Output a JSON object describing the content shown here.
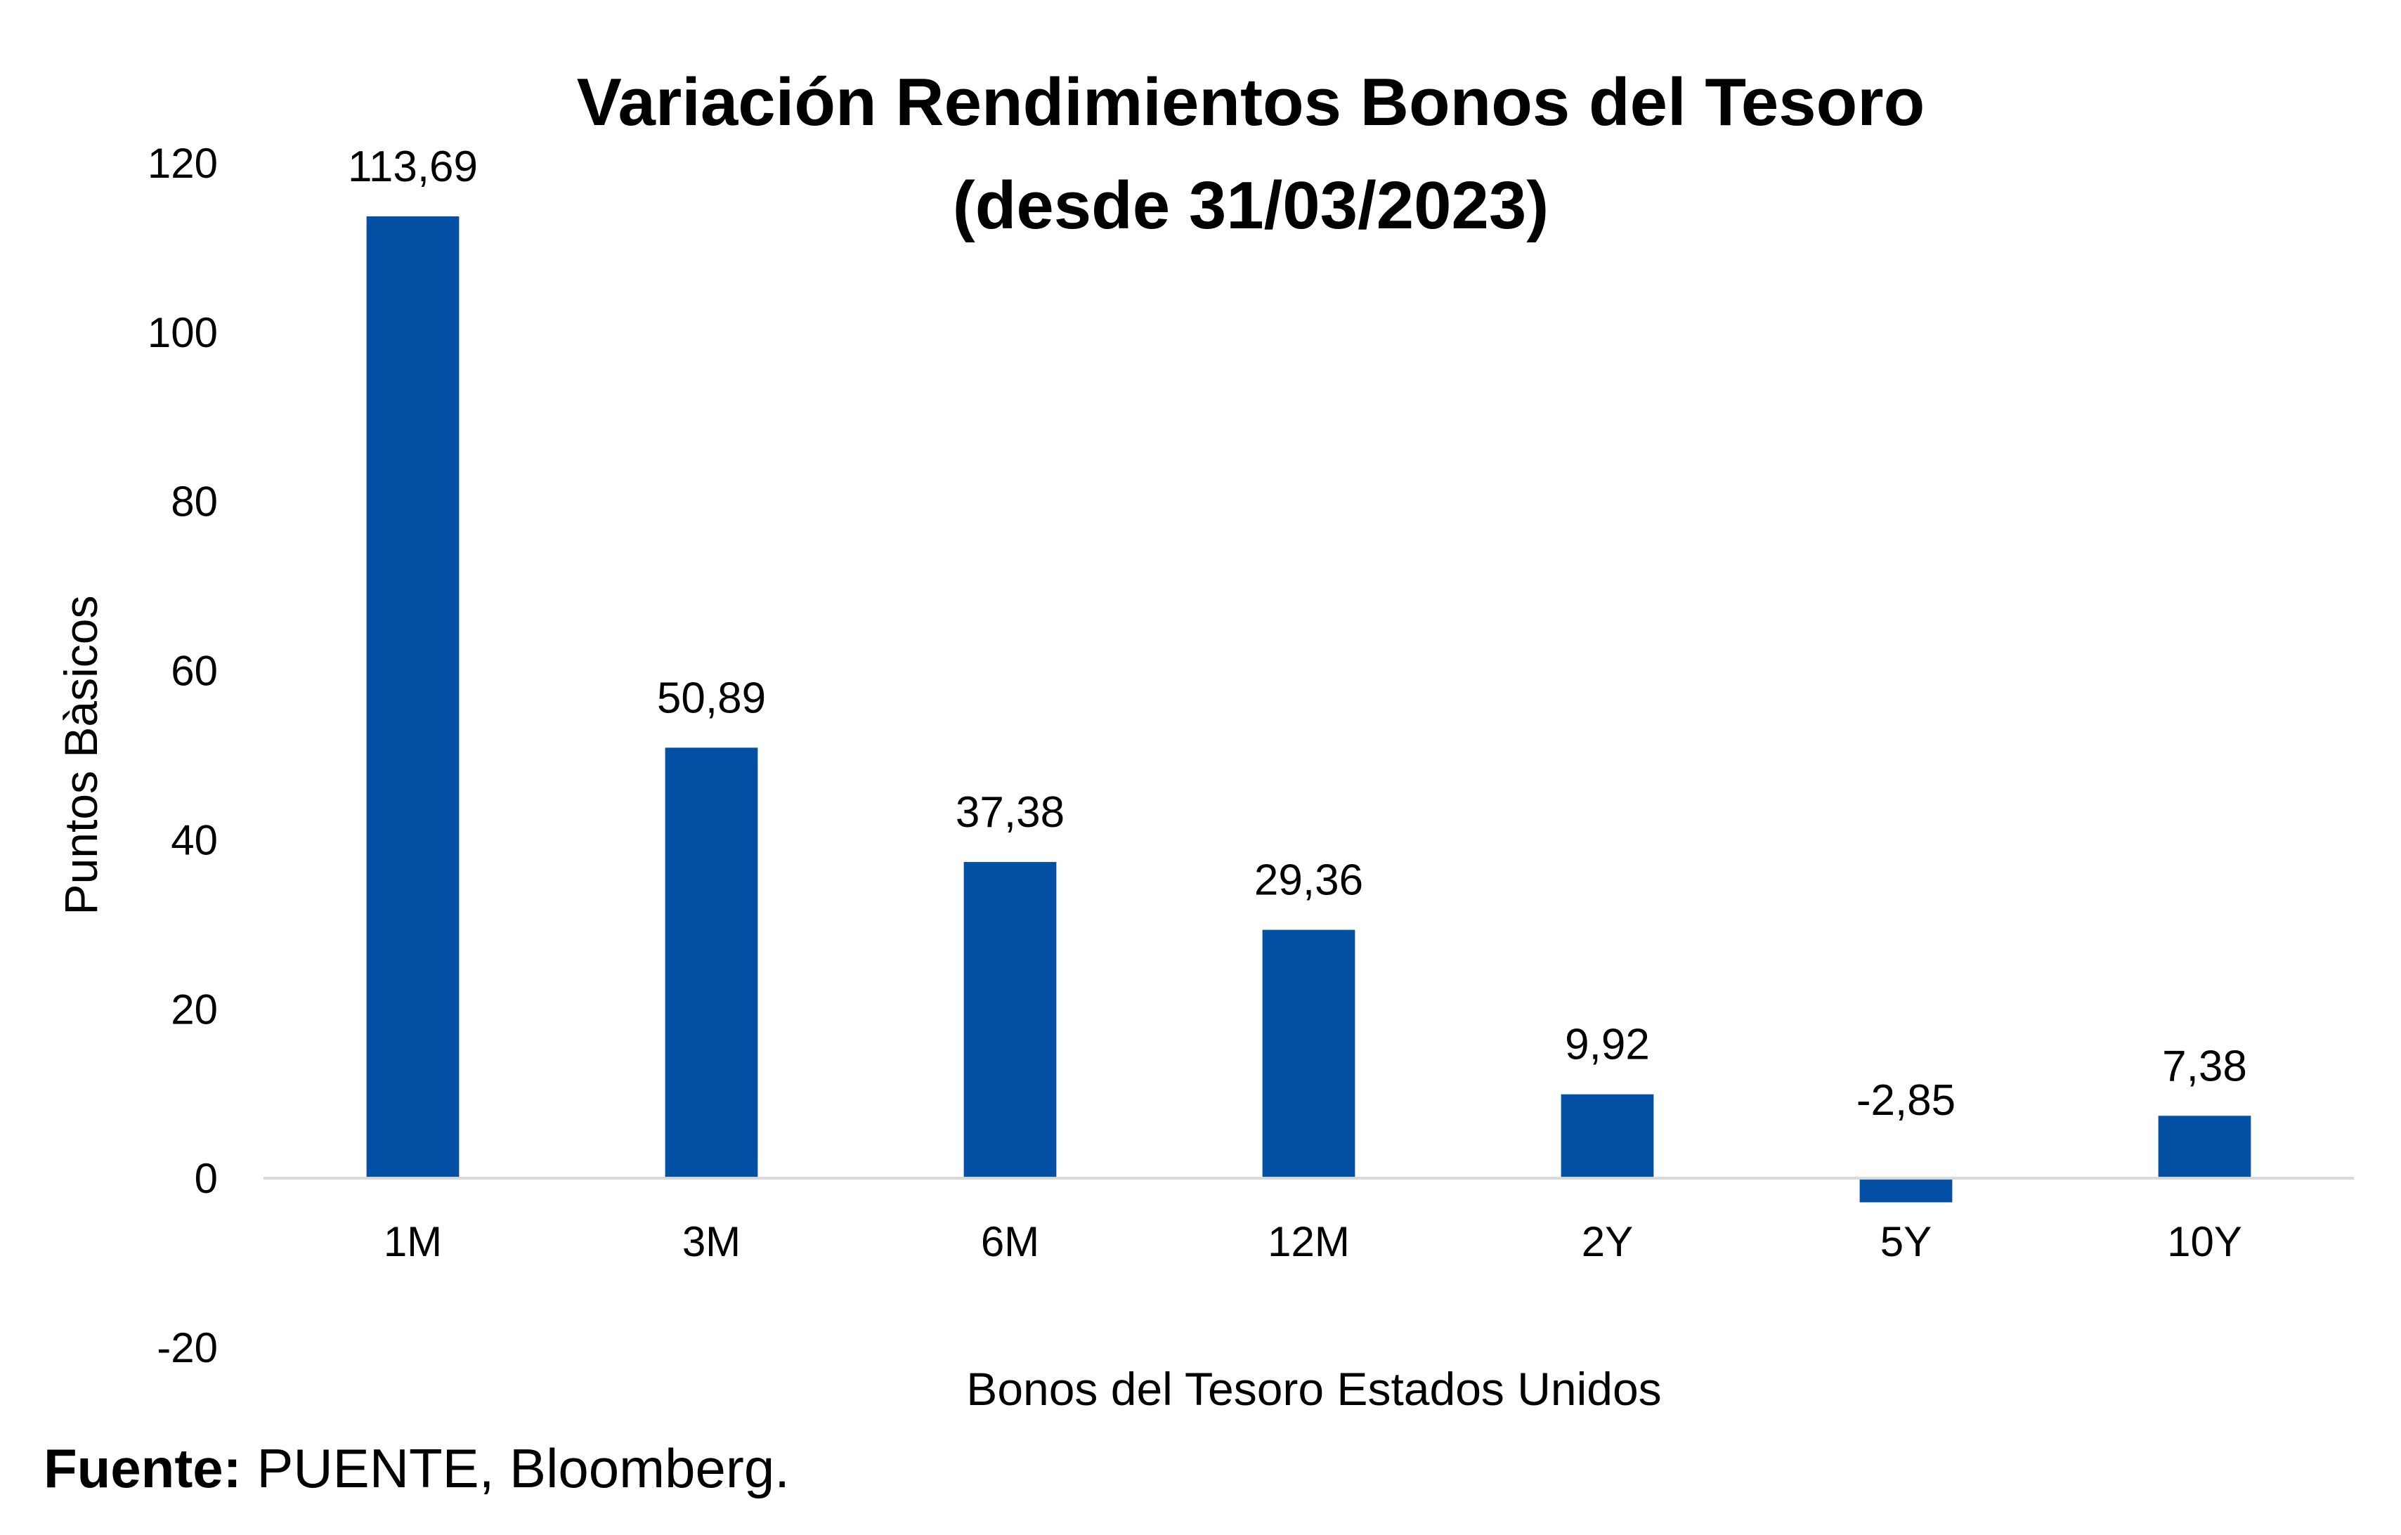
{
  "chart_data": {
    "type": "bar",
    "title": "Variación Rendimientos Bonos del Tesoro",
    "subtitle": "(desde 31/03/2023)",
    "xlabel": "Bonos del Tesoro Estados Unidos",
    "ylabel": "Puntos Bàsicos",
    "categories": [
      "1M",
      "3M",
      "6M",
      "12M",
      "2Y",
      "5Y",
      "10Y"
    ],
    "values": [
      113.69,
      50.89,
      37.38,
      29.36,
      9.92,
      -2.85,
      7.38
    ],
    "data_labels": [
      "113,69",
      "50,89",
      "37,38",
      "29,36",
      "9,92",
      "-2,85",
      "7,38"
    ],
    "ylim": [
      -20,
      120
    ],
    "yticks": [
      -20,
      0,
      20,
      40,
      60,
      80,
      100,
      120
    ],
    "grid": false,
    "legend": "none",
    "bar_color": "#0450A4",
    "axis_color": "#D9D9D9"
  },
  "source": {
    "label": "Fuente:",
    "text": " PUENTE, Bloomberg."
  }
}
